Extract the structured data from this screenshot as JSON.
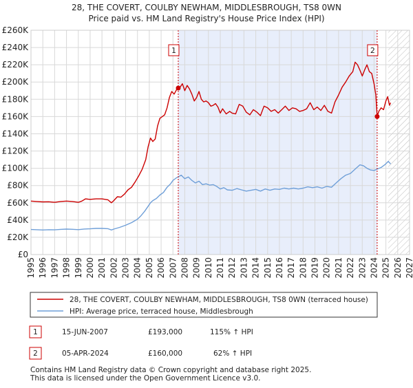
{
  "chart_data": {
    "type": "line",
    "title": "28, THE COVERT, COULBY NEWHAM, MIDDLESBROUGH, TS8 0WN",
    "subtitle": "Price paid vs. HM Land Registry's House Price Index (HPI)",
    "xlabel": "",
    "ylabel": "",
    "xlim": [
      1995,
      2027
    ],
    "ylim": [
      0,
      260000
    ],
    "grid": true,
    "y_ticks": [
      {
        "value": 0,
        "label": "£0"
      },
      {
        "value": 20000,
        "label": "£20K"
      },
      {
        "value": 40000,
        "label": "£40K"
      },
      {
        "value": 60000,
        "label": "£60K"
      },
      {
        "value": 80000,
        "label": "£80K"
      },
      {
        "value": 100000,
        "label": "£100K"
      },
      {
        "value": 120000,
        "label": "£120K"
      },
      {
        "value": 140000,
        "label": "£140K"
      },
      {
        "value": 160000,
        "label": "£160K"
      },
      {
        "value": 180000,
        "label": "£180K"
      },
      {
        "value": 200000,
        "label": "£200K"
      },
      {
        "value": 220000,
        "label": "£220K"
      },
      {
        "value": 240000,
        "label": "£240K"
      },
      {
        "value": 260000,
        "label": "£260K"
      }
    ],
    "x_ticks": [
      "1995",
      "1996",
      "1997",
      "1998",
      "1999",
      "2000",
      "2001",
      "2002",
      "2003",
      "2004",
      "2005",
      "2006",
      "2007",
      "2008",
      "2009",
      "2010",
      "2011",
      "2012",
      "2013",
      "2014",
      "2015",
      "2016",
      "2017",
      "2018",
      "2019",
      "2020",
      "2021",
      "2022",
      "2023",
      "2024",
      "2025",
      "2026",
      "2027"
    ],
    "shaded_period": {
      "from": 2007.45,
      "to": 2024.26
    },
    "hatched_from": 2025.2,
    "series": [
      {
        "name": "28, THE COVERT, COULBY NEWHAM, MIDDLESBROUGH, TS8 0WN (terraced house)",
        "color": "#cc0000",
        "points": [
          [
            1995.0,
            62000
          ],
          [
            1995.5,
            61500
          ],
          [
            1996.0,
            61000
          ],
          [
            1996.5,
            61200
          ],
          [
            1997.0,
            60500
          ],
          [
            1997.5,
            61500
          ],
          [
            1998.0,
            62000
          ],
          [
            1998.5,
            61500
          ],
          [
            1999.0,
            60500
          ],
          [
            1999.3,
            62000
          ],
          [
            1999.6,
            64500
          ],
          [
            2000.0,
            64000
          ],
          [
            2000.5,
            64500
          ],
          [
            2001.0,
            64500
          ],
          [
            2001.5,
            63500
          ],
          [
            2001.8,
            60000
          ],
          [
            2002.0,
            62500
          ],
          [
            2002.3,
            67000
          ],
          [
            2002.6,
            66500
          ],
          [
            2002.9,
            70000
          ],
          [
            2003.2,
            75000
          ],
          [
            2003.5,
            78000
          ],
          [
            2003.8,
            84000
          ],
          [
            2004.1,
            91000
          ],
          [
            2004.4,
            99000
          ],
          [
            2004.7,
            110000
          ],
          [
            2004.9,
            125000
          ],
          [
            2005.1,
            135000
          ],
          [
            2005.3,
            131000
          ],
          [
            2005.5,
            134000
          ],
          [
            2005.7,
            149000
          ],
          [
            2005.9,
            158000
          ],
          [
            2006.1,
            160000
          ],
          [
            2006.3,
            162000
          ],
          [
            2006.5,
            170000
          ],
          [
            2006.7,
            182000
          ],
          [
            2006.9,
            189000
          ],
          [
            2007.1,
            186000
          ],
          [
            2007.3,
            191000
          ],
          [
            2007.45,
            193000
          ],
          [
            2007.6,
            194000
          ],
          [
            2007.8,
            198000
          ],
          [
            2008.0,
            190000
          ],
          [
            2008.2,
            196000
          ],
          [
            2008.4,
            192000
          ],
          [
            2008.6,
            186000
          ],
          [
            2008.8,
            178000
          ],
          [
            2009.0,
            182000
          ],
          [
            2009.2,
            189000
          ],
          [
            2009.4,
            180000
          ],
          [
            2009.6,
            177000
          ],
          [
            2009.8,
            178000
          ],
          [
            2010.0,
            176000
          ],
          [
            2010.2,
            172000
          ],
          [
            2010.4,
            173000
          ],
          [
            2010.6,
            175000
          ],
          [
            2010.8,
            171000
          ],
          [
            2011.0,
            164000
          ],
          [
            2011.2,
            169000
          ],
          [
            2011.5,
            163000
          ],
          [
            2011.8,
            166000
          ],
          [
            2012.0,
            164000
          ],
          [
            2012.3,
            163000
          ],
          [
            2012.6,
            174000
          ],
          [
            2012.9,
            172000
          ],
          [
            2013.2,
            165000
          ],
          [
            2013.5,
            162000
          ],
          [
            2013.8,
            168000
          ],
          [
            2014.1,
            165000
          ],
          [
            2014.4,
            161000
          ],
          [
            2014.7,
            172000
          ],
          [
            2015.0,
            170000
          ],
          [
            2015.3,
            166000
          ],
          [
            2015.6,
            168000
          ],
          [
            2015.9,
            164000
          ],
          [
            2016.2,
            168000
          ],
          [
            2016.5,
            172000
          ],
          [
            2016.8,
            167000
          ],
          [
            2017.1,
            170000
          ],
          [
            2017.4,
            169000
          ],
          [
            2017.7,
            166000
          ],
          [
            2018.0,
            167000
          ],
          [
            2018.3,
            169000
          ],
          [
            2018.6,
            176000
          ],
          [
            2018.9,
            168000
          ],
          [
            2019.2,
            171000
          ],
          [
            2019.5,
            167000
          ],
          [
            2019.8,
            173000
          ],
          [
            2020.1,
            166000
          ],
          [
            2020.4,
            164000
          ],
          [
            2020.7,
            177000
          ],
          [
            2021.0,
            185000
          ],
          [
            2021.3,
            194000
          ],
          [
            2021.6,
            200000
          ],
          [
            2021.9,
            207000
          ],
          [
            2022.2,
            212000
          ],
          [
            2022.4,
            223000
          ],
          [
            2022.6,
            220000
          ],
          [
            2022.8,
            214000
          ],
          [
            2023.0,
            207000
          ],
          [
            2023.2,
            214000
          ],
          [
            2023.4,
            220000
          ],
          [
            2023.6,
            212000
          ],
          [
            2023.8,
            210000
          ],
          [
            2024.0,
            198000
          ],
          [
            2024.15,
            185000
          ],
          [
            2024.26,
            160000
          ],
          [
            2024.4,
            166000
          ],
          [
            2024.6,
            170000
          ],
          [
            2024.8,
            168000
          ],
          [
            2025.0,
            178000
          ],
          [
            2025.15,
            183000
          ],
          [
            2025.3,
            173000
          ],
          [
            2025.4,
            176000
          ]
        ]
      },
      {
        "name": "HPI: Average price, terraced house, Middlesbrough",
        "color": "#6f9fd8",
        "points": [
          [
            1995.0,
            29000
          ],
          [
            1995.5,
            28800
          ],
          [
            1996.0,
            28500
          ],
          [
            1996.5,
            28800
          ],
          [
            1997.0,
            28600
          ],
          [
            1997.5,
            29200
          ],
          [
            1998.0,
            29500
          ],
          [
            1998.5,
            29300
          ],
          [
            1999.0,
            28900
          ],
          [
            1999.5,
            29600
          ],
          [
            2000.0,
            29800
          ],
          [
            2000.5,
            30300
          ],
          [
            2001.0,
            30300
          ],
          [
            2001.5,
            30000
          ],
          [
            2001.8,
            28500
          ],
          [
            2002.0,
            29500
          ],
          [
            2002.5,
            31500
          ],
          [
            2003.0,
            34000
          ],
          [
            2003.5,
            37000
          ],
          [
            2004.0,
            41000
          ],
          [
            2004.3,
            45000
          ],
          [
            2004.6,
            50000
          ],
          [
            2004.9,
            56000
          ],
          [
            2005.1,
            60000
          ],
          [
            2005.3,
            62500
          ],
          [
            2005.6,
            65000
          ],
          [
            2005.9,
            69000
          ],
          [
            2006.2,
            72000
          ],
          [
            2006.5,
            78000
          ],
          [
            2006.8,
            82000
          ],
          [
            2007.0,
            86000
          ],
          [
            2007.3,
            89000
          ],
          [
            2007.45,
            90000
          ],
          [
            2007.7,
            92000
          ],
          [
            2008.0,
            88000
          ],
          [
            2008.3,
            90000
          ],
          [
            2008.6,
            86000
          ],
          [
            2008.9,
            83000
          ],
          [
            2009.2,
            85000
          ],
          [
            2009.5,
            81000
          ],
          [
            2009.8,
            82000
          ],
          [
            2010.1,
            80500
          ],
          [
            2010.4,
            81000
          ],
          [
            2010.7,
            79000
          ],
          [
            2011.0,
            76000
          ],
          [
            2011.3,
            77500
          ],
          [
            2011.6,
            75000
          ],
          [
            2012.0,
            74500
          ],
          [
            2012.4,
            76500
          ],
          [
            2012.8,
            75000
          ],
          [
            2013.2,
            73500
          ],
          [
            2013.6,
            74500
          ],
          [
            2014.0,
            75500
          ],
          [
            2014.4,
            73500
          ],
          [
            2014.8,
            76000
          ],
          [
            2015.2,
            74500
          ],
          [
            2015.6,
            76000
          ],
          [
            2016.0,
            75500
          ],
          [
            2016.4,
            77000
          ],
          [
            2016.8,
            76000
          ],
          [
            2017.2,
            77000
          ],
          [
            2017.6,
            76000
          ],
          [
            2018.0,
            77000
          ],
          [
            2018.4,
            78500
          ],
          [
            2018.8,
            77500
          ],
          [
            2019.2,
            78500
          ],
          [
            2019.6,
            77000
          ],
          [
            2020.0,
            79000
          ],
          [
            2020.4,
            78000
          ],
          [
            2020.8,
            83000
          ],
          [
            2021.2,
            88000
          ],
          [
            2021.6,
            92000
          ],
          [
            2022.0,
            94000
          ],
          [
            2022.4,
            99000
          ],
          [
            2022.8,
            104000
          ],
          [
            2023.1,
            103000
          ],
          [
            2023.4,
            100000
          ],
          [
            2023.7,
            98000
          ],
          [
            2024.0,
            97500
          ],
          [
            2024.26,
            99000
          ],
          [
            2024.6,
            101000
          ],
          [
            2024.9,
            104000
          ],
          [
            2025.2,
            108000
          ],
          [
            2025.4,
            105000
          ]
        ]
      }
    ],
    "markers": [
      {
        "label": "1",
        "x": 2007.45,
        "value": 193000
      },
      {
        "label": "2",
        "x": 2024.26,
        "value": 160000
      }
    ],
    "legend_position": "bottom"
  },
  "transactions": [
    {
      "num": "1",
      "date": "15-JUN-2007",
      "price": "£193,000",
      "hpi": "115% ↑ HPI"
    },
    {
      "num": "2",
      "date": "05-APR-2024",
      "price": "£160,000",
      "hpi": "62% ↑ HPI"
    }
  ],
  "footer": {
    "line1": "Contains HM Land Registry data © Crown copyright and database right 2025.",
    "line2": "This data is licensed under the Open Government Licence v3.0."
  }
}
